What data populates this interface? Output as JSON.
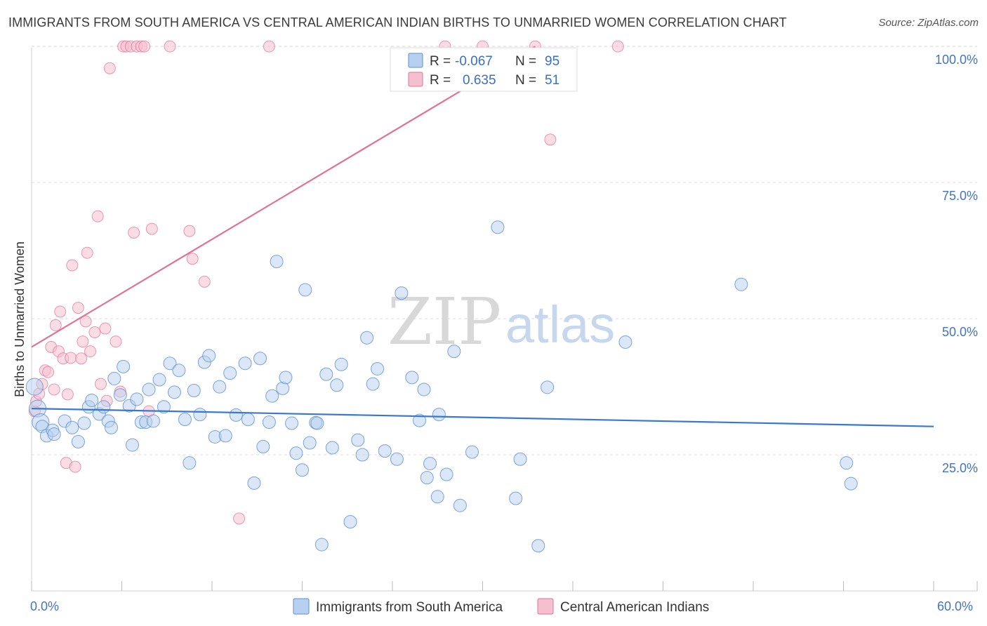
{
  "title": "IMMIGRANTS FROM SOUTH AMERICA VS CENTRAL AMERICAN INDIAN BIRTHS TO UNMARRIED WOMEN CORRELATION CHART",
  "source": "Source: ZipAtlas.com",
  "watermark": {
    "zip": "ZIP",
    "atlas": "atlas"
  },
  "colors": {
    "blue": "#5b8fd6",
    "blue_fill": "#b8d0f0",
    "pink": "#e07298",
    "pink_fill": "#f5bfd0",
    "tick": "#4472c4"
  },
  "legend": {
    "rows": [
      {
        "r_label": "R =",
        "r_value": "-0.067",
        "n_label": "N =",
        "n_value": "95"
      },
      {
        "r_label": "R =",
        "r_value": "0.635",
        "n_label": "N =",
        "n_value": "51"
      }
    ]
  },
  "chart_data": {
    "type": "scatter",
    "xlabel": "",
    "ylabel": "Births to Unmarried Women",
    "xlim": [
      0,
      60
    ],
    "ylim": [
      0,
      102
    ],
    "x_tick_labels": [
      "0.0%",
      "60.0%"
    ],
    "y_ticks": [
      25,
      50,
      75,
      100
    ],
    "y_tick_labels": [
      "25.0%",
      "50.0%",
      "75.0%",
      "100.0%"
    ],
    "grid": true,
    "legend_position": "bottom",
    "series": [
      {
        "name": "Immigrants from South America",
        "color": "#5b8fd6",
        "trend": [
          [
            0,
            33.5
          ],
          [
            60,
            30.2
          ]
        ],
        "points": [
          [
            0.2,
            37.5
          ],
          [
            0.4,
            33.5
          ],
          [
            0.6,
            31.0
          ],
          [
            0.7,
            30.2
          ],
          [
            1.0,
            28.5
          ],
          [
            1.4,
            29.5
          ],
          [
            1.5,
            28.8
          ],
          [
            2.2,
            31.2
          ],
          [
            2.7,
            30.0
          ],
          [
            3.1,
            27.4
          ],
          [
            3.5,
            30.8
          ],
          [
            3.8,
            33.8
          ],
          [
            4.0,
            35.0
          ],
          [
            4.5,
            32.5
          ],
          [
            4.8,
            33.8
          ],
          [
            5.1,
            31.2
          ],
          [
            5.3,
            30.0
          ],
          [
            5.5,
            39.0
          ],
          [
            5.9,
            36.0
          ],
          [
            6.1,
            41.2
          ],
          [
            6.5,
            34.0
          ],
          [
            6.7,
            26.8
          ],
          [
            7.0,
            35.2
          ],
          [
            7.3,
            31.0
          ],
          [
            7.6,
            31.0
          ],
          [
            7.8,
            37.0
          ],
          [
            8.1,
            31.2
          ],
          [
            8.5,
            38.8
          ],
          [
            8.8,
            33.8
          ],
          [
            9.2,
            41.8
          ],
          [
            9.5,
            36.5
          ],
          [
            9.8,
            40.5
          ],
          [
            10.2,
            31.5
          ],
          [
            10.5,
            23.5
          ],
          [
            10.8,
            36.8
          ],
          [
            11.2,
            32.4
          ],
          [
            11.5,
            42.0
          ],
          [
            11.8,
            43.2
          ],
          [
            12.2,
            28.3
          ],
          [
            12.5,
            37.5
          ],
          [
            12.9,
            28.5
          ],
          [
            13.2,
            40.0
          ],
          [
            13.6,
            32.3
          ],
          [
            14.2,
            41.8
          ],
          [
            14.4,
            31.5
          ],
          [
            14.8,
            19.8
          ],
          [
            15.2,
            42.7
          ],
          [
            15.4,
            26.5
          ],
          [
            15.8,
            31.0
          ],
          [
            16.0,
            35.8
          ],
          [
            16.3,
            60.5
          ],
          [
            16.7,
            37.2
          ],
          [
            16.9,
            39.2
          ],
          [
            17.3,
            30.8
          ],
          [
            17.6,
            25.3
          ],
          [
            18.0,
            22.2
          ],
          [
            18.2,
            55.3
          ],
          [
            18.5,
            27.2
          ],
          [
            18.9,
            30.9
          ],
          [
            19.0,
            30.8
          ],
          [
            19.3,
            8.5
          ],
          [
            19.6,
            39.8
          ],
          [
            20.0,
            26.3
          ],
          [
            20.3,
            37.8
          ],
          [
            20.6,
            41.6
          ],
          [
            21.2,
            12.7
          ],
          [
            21.7,
            27.7
          ],
          [
            22.0,
            25.0
          ],
          [
            22.3,
            46.5
          ],
          [
            22.7,
            38.0
          ],
          [
            23.0,
            40.8
          ],
          [
            23.5,
            25.7
          ],
          [
            24.3,
            24.2
          ],
          [
            24.6,
            54.7
          ],
          [
            25.3,
            39.2
          ],
          [
            25.8,
            31.3
          ],
          [
            26.1,
            37.0
          ],
          [
            26.3,
            20.8
          ],
          [
            26.5,
            23.4
          ],
          [
            27.0,
            17.3
          ],
          [
            27.1,
            32.4
          ],
          [
            27.6,
            21.4
          ],
          [
            28.1,
            44.0
          ],
          [
            28.5,
            15.7
          ],
          [
            29.3,
            25.5
          ],
          [
            31.0,
            66.8
          ],
          [
            32.2,
            17.0
          ],
          [
            32.5,
            24.2
          ],
          [
            33.7,
            8.3
          ],
          [
            34.3,
            37.4
          ],
          [
            39.5,
            45.7
          ],
          [
            47.2,
            56.3
          ],
          [
            54.2,
            23.5
          ],
          [
            54.5,
            19.7
          ]
        ]
      },
      {
        "name": "Central American Indians",
        "color": "#e07298",
        "trend": [
          [
            0,
            44.8
          ],
          [
            33.5,
            100.0
          ]
        ],
        "points": [
          [
            0.2,
            33.0
          ],
          [
            0.3,
            34.8
          ],
          [
            0.5,
            36.2
          ],
          [
            0.7,
            38.0
          ],
          [
            0.9,
            40.5
          ],
          [
            1.1,
            40.2
          ],
          [
            1.3,
            44.8
          ],
          [
            1.5,
            37.0
          ],
          [
            1.6,
            48.8
          ],
          [
            1.8,
            44.0
          ],
          [
            1.9,
            51.3
          ],
          [
            2.1,
            42.7
          ],
          [
            2.3,
            23.5
          ],
          [
            2.4,
            36.1
          ],
          [
            2.6,
            42.8
          ],
          [
            2.7,
            59.8
          ],
          [
            2.9,
            22.8
          ],
          [
            3.1,
            52.0
          ],
          [
            3.3,
            42.7
          ],
          [
            3.4,
            45.8
          ],
          [
            3.6,
            49.5
          ],
          [
            3.7,
            62.1
          ],
          [
            3.9,
            44.0
          ],
          [
            4.2,
            47.5
          ],
          [
            4.4,
            68.8
          ],
          [
            4.6,
            38.0
          ],
          [
            4.9,
            48.2
          ],
          [
            5.0,
            34.9
          ],
          [
            5.2,
            96.0
          ],
          [
            5.6,
            45.8
          ],
          [
            5.9,
            36.6
          ],
          [
            6.1,
            100.0
          ],
          [
            6.3,
            100.0
          ],
          [
            6.6,
            100.0
          ],
          [
            6.8,
            65.8
          ],
          [
            7.0,
            100.0
          ],
          [
            7.3,
            100.0
          ],
          [
            7.5,
            100.0
          ],
          [
            7.8,
            33.0
          ],
          [
            8.0,
            66.5
          ],
          [
            9.2,
            100.0
          ],
          [
            10.5,
            66.1
          ],
          [
            10.7,
            61.0
          ],
          [
            11.5,
            56.8
          ],
          [
            13.8,
            13.3
          ],
          [
            15.8,
            100.0
          ],
          [
            30.0,
            100.0
          ],
          [
            33.5,
            100.0
          ],
          [
            34.5,
            82.9
          ],
          [
            39.0,
            100.0
          ],
          [
            27.5,
            100.0
          ]
        ]
      }
    ]
  }
}
